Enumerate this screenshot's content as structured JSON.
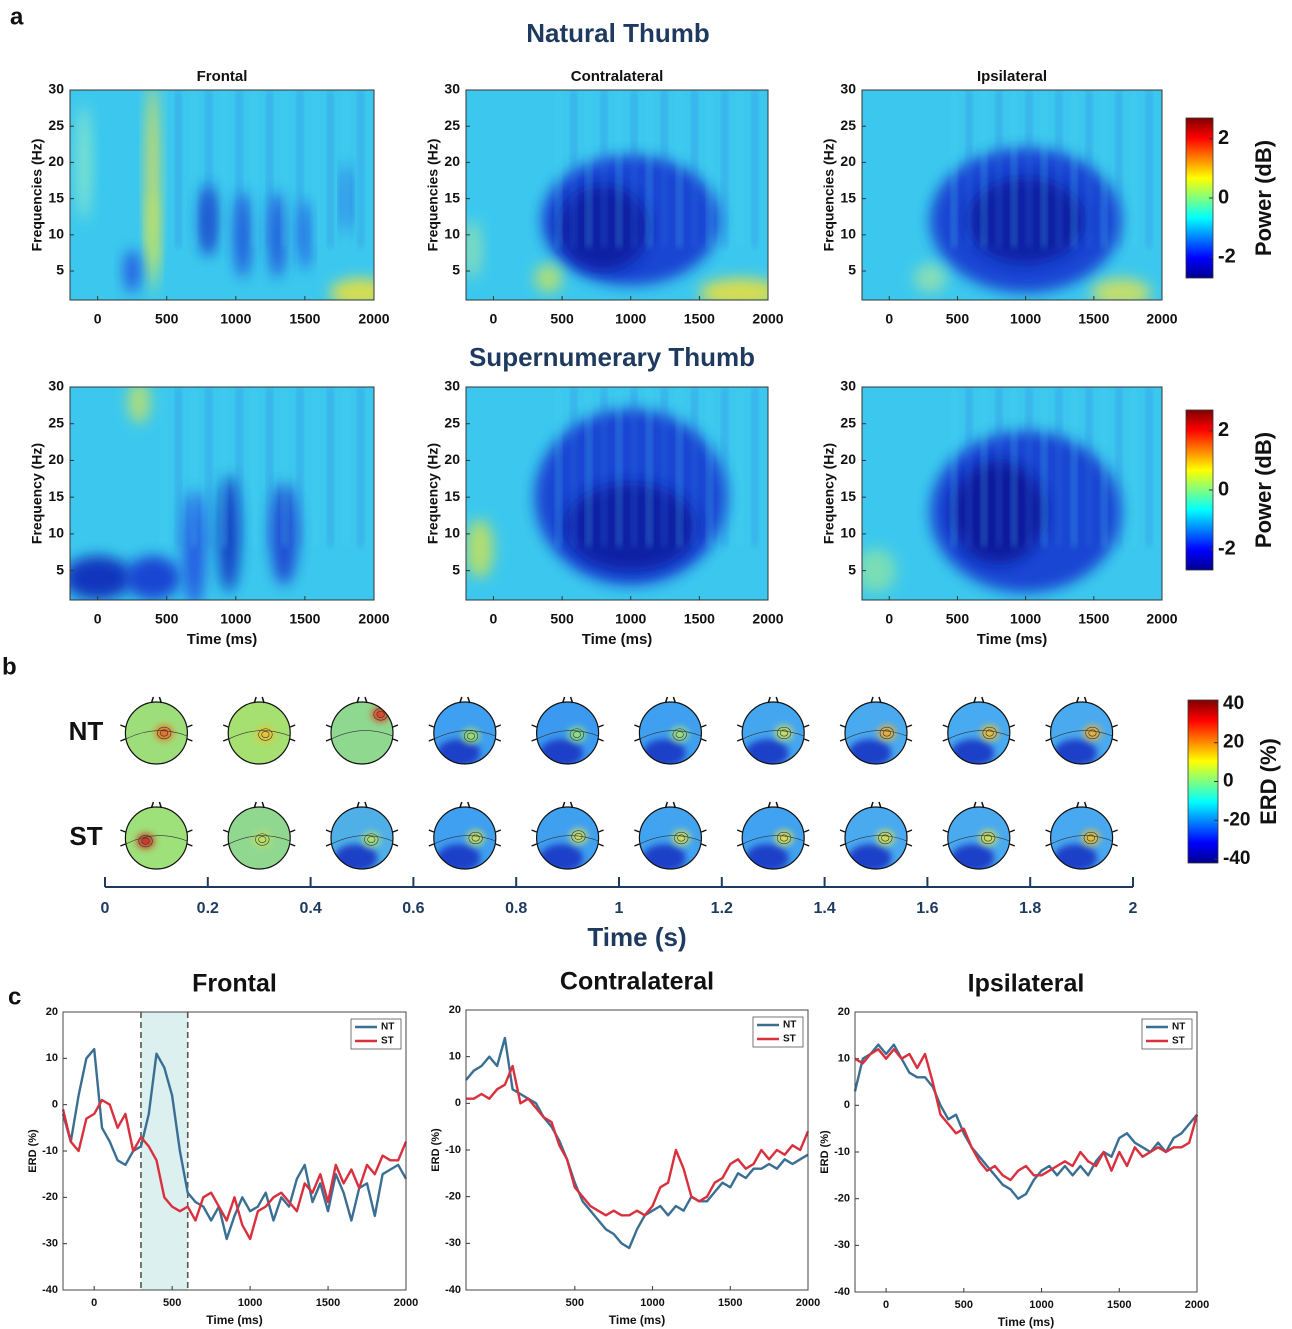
{
  "panel_labels": [
    "a",
    "b",
    "c"
  ],
  "headings": [
    "Natural Thumb",
    "Supernumerary Thumb"
  ],
  "chart_data": [
    {
      "type": "spectrogram",
      "title": "Frontal",
      "ylabel": "Frequencies (Hz)",
      "xlim": [
        -200,
        2000
      ],
      "xticks": [
        0,
        500,
        1000,
        1500,
        2000
      ],
      "ylim": [
        1,
        30
      ],
      "yticks": [
        5,
        10,
        15,
        20,
        25,
        30
      ]
    },
    {
      "type": "spectrogram",
      "title": "Contralateral",
      "ylabel": "Frequencies (Hz)",
      "xlim": [
        -200,
        2000
      ],
      "xticks": [
        0,
        500,
        1000,
        1500,
        2000
      ],
      "ylim": [
        1,
        30
      ],
      "yticks": [
        5,
        10,
        15,
        20,
        25,
        30
      ]
    },
    {
      "type": "spectrogram",
      "title": "Ipsilateral",
      "ylabel": "Frequencies (Hz)",
      "xlim": [
        -200,
        2000
      ],
      "xticks": [
        0,
        500,
        1000,
        1500,
        2000
      ],
      "ylim": [
        1,
        30
      ],
      "yticks": [
        5,
        10,
        15,
        20,
        25,
        30
      ]
    },
    {
      "type": "spectrogram",
      "ylabel": "Frequency (Hz)",
      "xlabel": "Time (ms)",
      "xlim": [
        -200,
        2000
      ],
      "xticks": [
        0,
        500,
        1000,
        1500,
        2000
      ],
      "ylim": [
        1,
        30
      ],
      "yticks": [
        5,
        10,
        15,
        20,
        25,
        30
      ]
    },
    {
      "type": "spectrogram",
      "ylabel": "Frequency (Hz)",
      "xlabel": "Time (ms)",
      "xlim": [
        -200,
        2000
      ],
      "xticks": [
        0,
        500,
        1000,
        1500,
        2000
      ],
      "ylim": [
        1,
        30
      ],
      "yticks": [
        5,
        10,
        15,
        20,
        25,
        30
      ]
    },
    {
      "type": "spectrogram",
      "ylabel": "Frequency (Hz)",
      "xlabel": "Time (ms)",
      "xlim": [
        -200,
        2000
      ],
      "xticks": [
        0,
        500,
        1000,
        1500,
        2000
      ],
      "ylim": [
        1,
        30
      ],
      "yticks": [
        5,
        10,
        15,
        20,
        25,
        30
      ]
    },
    {
      "type": "colorbar",
      "label": "Power (dB)",
      "clim": [
        -2.7,
        2.7
      ],
      "ticks": [
        -2,
        0,
        2
      ]
    },
    {
      "type": "colorbar",
      "label": "Power (dB)",
      "clim": [
        -2.7,
        2.7
      ],
      "ticks": [
        -2,
        0,
        2
      ]
    },
    {
      "type": "topomap",
      "rows": [
        "NT",
        "ST"
      ],
      "xlabel": "Time (s)",
      "xlim": [
        0,
        2
      ],
      "xticks": [
        0,
        0.2,
        0.4,
        0.6,
        0.8,
        1,
        1.2,
        1.4,
        1.6,
        1.8,
        2
      ]
    },
    {
      "type": "colorbar",
      "label": "ERD (%)",
      "clim": [
        -42,
        42
      ],
      "ticks": [
        -40,
        -20,
        0,
        20,
        40
      ]
    },
    {
      "type": "line",
      "title": "Frontal",
      "xlabel": "Time (ms)",
      "ylabel": "ERD (%)",
      "xlim": [
        -200,
        2000
      ],
      "xticks": [
        0,
        500,
        1000,
        1500,
        2000
      ],
      "ylim": [
        -40,
        20
      ],
      "yticks": [
        -40,
        -30,
        -20,
        -10,
        0,
        10,
        20
      ],
      "legend": "upper right",
      "highlight": [
        300,
        600
      ],
      "x": [
        -200,
        -150,
        -100,
        -50,
        0,
        50,
        100,
        150,
        200,
        250,
        300,
        350,
        400,
        450,
        500,
        550,
        600,
        650,
        700,
        750,
        800,
        850,
        900,
        950,
        1000,
        1050,
        1100,
        1150,
        1200,
        1250,
        1300,
        1350,
        1400,
        1450,
        1500,
        1550,
        1600,
        1650,
        1700,
        1750,
        1800,
        1850,
        1900,
        1950,
        2000
      ],
      "series": [
        {
          "name": "NT",
          "color": "#3a6f93",
          "values": [
            -2,
            -8,
            2,
            10,
            12,
            -5,
            -8,
            -12,
            -13,
            -10,
            -9,
            -2,
            11,
            8,
            2,
            -10,
            -19,
            -21,
            -22,
            -25,
            -22,
            -29,
            -24,
            -20,
            -23,
            -22,
            -19,
            -25,
            -20,
            -22,
            -16,
            -13,
            -21,
            -17,
            -23,
            -15,
            -19,
            -25,
            -18,
            -17,
            -24,
            -15,
            -14,
            -13,
            -16
          ]
        },
        {
          "name": "ST",
          "color": "#d9303e",
          "values": [
            -1,
            -8,
            -10,
            -3,
            -2,
            1,
            0,
            -5,
            -2,
            -10,
            -7,
            -9,
            -12,
            -20,
            -22,
            -23,
            -22,
            -25,
            -20,
            -19,
            -22,
            -25,
            -20,
            -26,
            -29,
            -23,
            -22,
            -20,
            -19,
            -21,
            -23,
            -17,
            -19,
            -15,
            -21,
            -13,
            -17,
            -14,
            -18,
            -13,
            -15,
            -11,
            -12,
            -12,
            -8
          ]
        }
      ]
    },
    {
      "type": "line",
      "title": "Contralateral",
      "xlabel": "Time (ms)",
      "ylabel": "ERD (%)",
      "xlim": [
        -200,
        2000
      ],
      "xticks": [
        500,
        1000,
        1500,
        2000
      ],
      "ylim": [
        -40,
        20
      ],
      "yticks": [
        -40,
        -30,
        -20,
        -10,
        0,
        10,
        20
      ],
      "legend": "upper right",
      "x": [
        -200,
        -150,
        -100,
        -50,
        0,
        50,
        100,
        150,
        200,
        250,
        300,
        350,
        400,
        450,
        500,
        550,
        600,
        650,
        700,
        750,
        800,
        850,
        900,
        950,
        1000,
        1050,
        1100,
        1150,
        1200,
        1250,
        1300,
        1350,
        1400,
        1450,
        1500,
        1550,
        1600,
        1650,
        1700,
        1750,
        1800,
        1850,
        1900,
        1950,
        2000
      ],
      "series": [
        {
          "name": "NT",
          "color": "#3a6f93",
          "values": [
            5,
            7,
            8,
            10,
            8,
            14,
            3,
            2,
            1,
            0,
            -3,
            -5,
            -8,
            -12,
            -17,
            -21,
            -23,
            -25,
            -27,
            -28,
            -30,
            -31,
            -27,
            -24,
            -23,
            -22,
            -24,
            -22,
            -23,
            -20,
            -21,
            -21,
            -19,
            -17,
            -18,
            -15,
            -16,
            -14,
            -14,
            -13,
            -14,
            -12,
            -13,
            -12,
            -11
          ]
        },
        {
          "name": "ST",
          "color": "#d9303e",
          "values": [
            1,
            1,
            2,
            1,
            3,
            4,
            8,
            0,
            1,
            -1,
            -3,
            -4,
            -9,
            -12,
            -18,
            -20,
            -22,
            -23,
            -24,
            -23,
            -24,
            -24,
            -23,
            -24,
            -22,
            -18,
            -17,
            -10,
            -14,
            -20,
            -21,
            -20,
            -17,
            -16,
            -13,
            -12,
            -14,
            -13,
            -10,
            -12,
            -10,
            -11,
            -9,
            -10,
            -6
          ]
        }
      ]
    },
    {
      "type": "line",
      "title": "Ipsilateral",
      "xlabel": "Time (ms)",
      "ylabel": "ERD (%)",
      "xlim": [
        -200,
        2000
      ],
      "xticks": [
        0,
        500,
        1000,
        1500,
        2000
      ],
      "ylim": [
        -40,
        20
      ],
      "yticks": [
        -40,
        -30,
        -20,
        -10,
        0,
        10,
        20
      ],
      "legend": "upper right",
      "x": [
        -200,
        -150,
        -100,
        -50,
        0,
        50,
        100,
        150,
        200,
        250,
        300,
        350,
        400,
        450,
        500,
        550,
        600,
        650,
        700,
        750,
        800,
        850,
        900,
        950,
        1000,
        1050,
        1100,
        1150,
        1200,
        1250,
        1300,
        1350,
        1400,
        1450,
        1500,
        1550,
        1600,
        1650,
        1700,
        1750,
        1800,
        1850,
        1900,
        1950,
        2000
      ],
      "series": [
        {
          "name": "NT",
          "color": "#3a6f93",
          "values": [
            3,
            10,
            11,
            13,
            11,
            13,
            10,
            7,
            6,
            6,
            4,
            0,
            -3,
            -2,
            -6,
            -9,
            -11,
            -13,
            -15,
            -17,
            -18,
            -20,
            -19,
            -16,
            -14,
            -13,
            -15,
            -13,
            -15,
            -13,
            -15,
            -12,
            -10,
            -11,
            -7,
            -6,
            -8,
            -9,
            -10,
            -8,
            -10,
            -7,
            -6,
            -4,
            -2
          ]
        },
        {
          "name": "ST",
          "color": "#d9303e",
          "values": [
            10,
            9,
            11,
            12,
            10,
            12,
            10,
            11,
            8,
            11,
            5,
            -2,
            -4,
            -6,
            -5,
            -9,
            -12,
            -14,
            -13,
            -15,
            -16,
            -14,
            -13,
            -15,
            -15,
            -14,
            -13,
            -12,
            -13,
            -10,
            -12,
            -13,
            -10,
            -14,
            -10,
            -13,
            -9,
            -11,
            -10,
            -9,
            -10,
            -9,
            -9,
            -8,
            -2
          ]
        }
      ]
    }
  ]
}
